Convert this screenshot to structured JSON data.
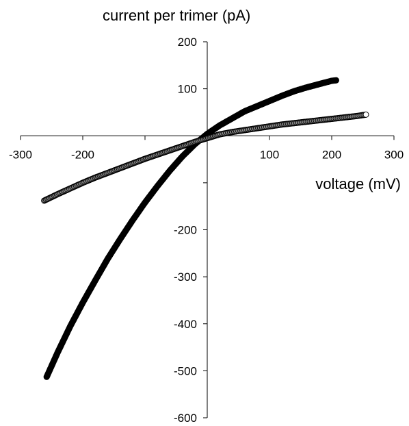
{
  "chart_data": {
    "type": "scatter",
    "xlabel": "voltage (mV)",
    "ylabel": "current per trimer (pA)",
    "xlim": [
      -300,
      300
    ],
    "ylim": [
      -600,
      200
    ],
    "x_ticks": [
      -300,
      -200,
      -100,
      0,
      100,
      200,
      300
    ],
    "x_tick_labels": [
      "-300",
      "-200",
      "",
      "",
      "100",
      "200",
      "300"
    ],
    "y_ticks": [
      200,
      100,
      0,
      -100,
      -200,
      -300,
      -400,
      -500,
      -600
    ],
    "y_tick_labels": [
      "200",
      "100",
      "",
      "",
      "-200",
      "-300",
      "-400",
      "-500",
      "-600"
    ],
    "grid": false,
    "series": [
      {
        "marker": "filled-circle",
        "color": "#000000",
        "x": [
          -258,
          -240,
          -220,
          -200,
          -180,
          -160,
          -140,
          -120,
          -100,
          -80,
          -60,
          -40,
          -20,
          0,
          20,
          40,
          60,
          80,
          100,
          120,
          140,
          160,
          180,
          200,
          207
        ],
        "y": [
          -513,
          -460,
          -405,
          -355,
          -308,
          -262,
          -220,
          -180,
          -142,
          -107,
          -74,
          -44,
          -18,
          4,
          22,
          37,
          52,
          63,
          74,
          85,
          95,
          103,
          110,
          117,
          118
        ]
      },
      {
        "marker": "open-circle",
        "color": "#000000",
        "x": [
          -262,
          -240,
          -220,
          -200,
          -180,
          -160,
          -140,
          -120,
          -100,
          -80,
          -60,
          -40,
          -20,
          0,
          20,
          40,
          60,
          80,
          100,
          120,
          140,
          160,
          180,
          200,
          220,
          240,
          255
        ],
        "y": [
          -138,
          -124,
          -112,
          -100,
          -89,
          -79,
          -69,
          -59,
          -49,
          -40,
          -31,
          -22,
          -13,
          -5,
          3,
          8,
          12,
          16,
          20,
          24,
          27,
          30,
          33,
          36,
          39,
          42,
          45
        ]
      }
    ]
  }
}
